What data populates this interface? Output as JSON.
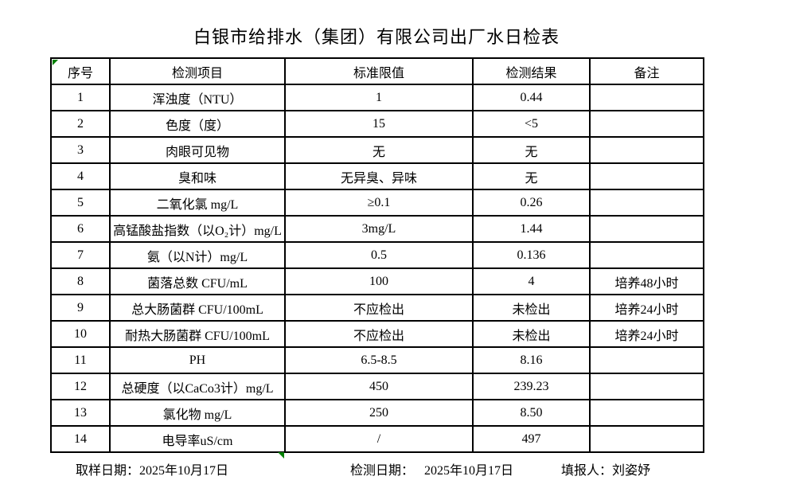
{
  "title": "白银市给排水（集团）有限公司出厂水日检表",
  "table": {
    "headers": [
      "序号",
      "检测项目",
      "标准限值",
      "检测结果",
      "备注"
    ],
    "rows": [
      [
        "1",
        "浑浊度（NTU）",
        "1",
        "0.44",
        ""
      ],
      [
        "2",
        "色度（度）",
        "15",
        "<5",
        ""
      ],
      [
        "3",
        "肉眼可见物",
        "无",
        "无",
        ""
      ],
      [
        "4",
        "臭和味",
        "无异臭、异味",
        "无",
        ""
      ],
      [
        "5",
        "二氧化氯 mg/L",
        "≥0.1",
        "0.26",
        ""
      ],
      [
        "6",
        "高锰酸盐指数（以O₂计）mg/L",
        "3mg/L",
        "1.44",
        ""
      ],
      [
        "7",
        "氨（以N计）mg/L",
        "0.5",
        "0.136",
        ""
      ],
      [
        "8",
        "菌落总数 CFU/mL",
        "100",
        "4",
        "培养48小时"
      ],
      [
        "9",
        "总大肠菌群 CFU/100mL",
        "不应检出",
        "未检出",
        "培养24小时"
      ],
      [
        "10",
        "耐热大肠菌群 CFU/100mL",
        "不应检出",
        "未检出",
        "培养24小时"
      ],
      [
        "11",
        "PH",
        "6.5-8.5",
        "8.16",
        ""
      ],
      [
        "12",
        "总硬度（以CaCo3计）mg/L",
        "450",
        "239.23",
        ""
      ],
      [
        "13",
        "氯化物 mg/L",
        "250",
        "8.50",
        ""
      ],
      [
        "14",
        "电导率uS/cm",
        "/",
        "497",
        ""
      ]
    ]
  },
  "footer": {
    "sampling_label": "取样日期：",
    "sampling_date": "2025年10月17日",
    "testing_label": "检测日期：",
    "testing_date": "2025年10月17日",
    "reporter_label": "填报人：",
    "reporter_name": "刘姿妤"
  },
  "colors": {
    "grid_line": "#000000",
    "marker_green": "#008000",
    "background": "#ffffff"
  }
}
